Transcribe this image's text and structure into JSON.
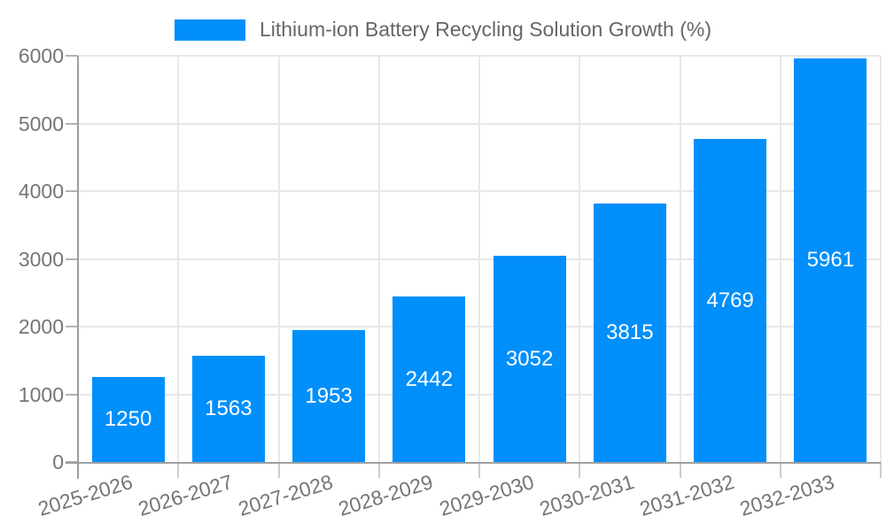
{
  "chart_data": {
    "type": "bar",
    "title": "Lithium-ion Battery Recycling Solution Growth (%)",
    "categories": [
      "2025-2026",
      "2026-2027",
      "2027-2028",
      "2028-2029",
      "2029-2030",
      "2030-2031",
      "2031-2032",
      "2032-2033"
    ],
    "values": [
      1250,
      1563,
      1953,
      2442,
      3052,
      3815,
      4769,
      5961
    ],
    "series": [
      {
        "name": "Lithium-ion Battery Recycling Solution Growth (%)",
        "values": [
          1250,
          1563,
          1953,
          2442,
          3052,
          3815,
          4769,
          5961
        ]
      }
    ],
    "xlabel": "",
    "ylabel": "",
    "ylim": [
      0,
      6000
    ],
    "yticks": [
      0,
      1000,
      2000,
      3000,
      4000,
      5000,
      6000
    ],
    "grid": true,
    "legend_position": "top",
    "bar_value_labels_shown": true
  },
  "colors": {
    "bar": "#008FFB",
    "bar_label": "#FFFFFF",
    "axis_line": "#9E9E9E",
    "gridline": "#E8E8E8",
    "tick_mark": "#B3B3B3",
    "x_tick_mark": "#CCCCCC",
    "tick_text": "#757575",
    "legend_text": "#666666",
    "background": "#FFFFFF"
  }
}
